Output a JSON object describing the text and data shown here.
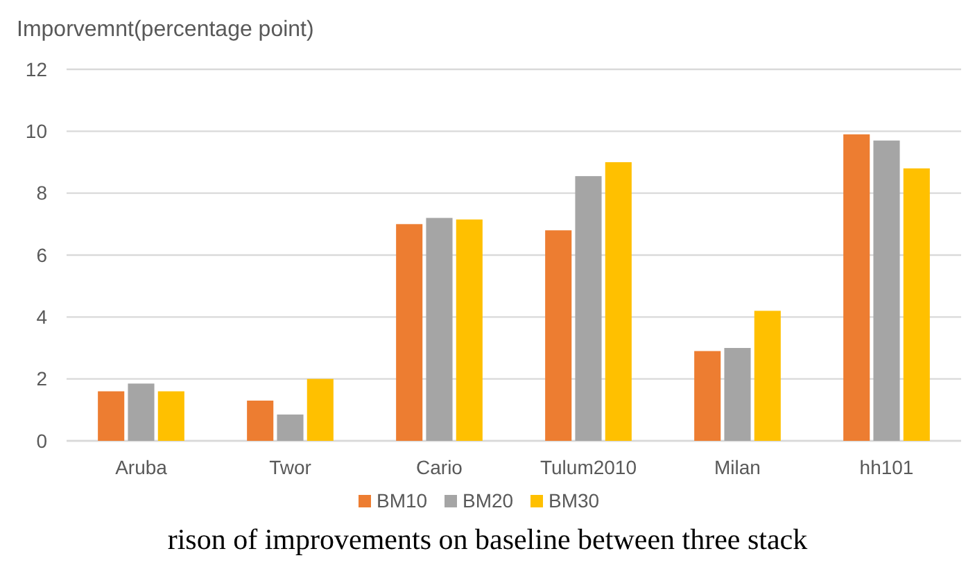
{
  "chart_data": {
    "type": "bar",
    "ylabel": "Imporvemnt(percentage point)",
    "categories": [
      "Aruba",
      "Twor",
      "Cario",
      "Tulum2010",
      "Milan",
      "hh101"
    ],
    "series": [
      {
        "name": "BM10",
        "color": "#ed7d31",
        "values": [
          1.6,
          1.3,
          7.0,
          6.8,
          2.9,
          9.9
        ]
      },
      {
        "name": "BM20",
        "color": "#a5a5a5",
        "values": [
          1.85,
          0.85,
          7.2,
          8.55,
          3.0,
          9.7
        ]
      },
      {
        "name": "BM30",
        "color": "#ffc000",
        "values": [
          1.6,
          2.0,
          7.15,
          9.0,
          4.2,
          8.8
        ]
      }
    ],
    "ylim": [
      0,
      12
    ],
    "yticks": [
      0,
      2,
      4,
      6,
      8,
      10,
      12
    ],
    "grid": "y",
    "legend": "bottom",
    "annotations": [
      "rison of improvements on baseline between three stack"
    ]
  }
}
